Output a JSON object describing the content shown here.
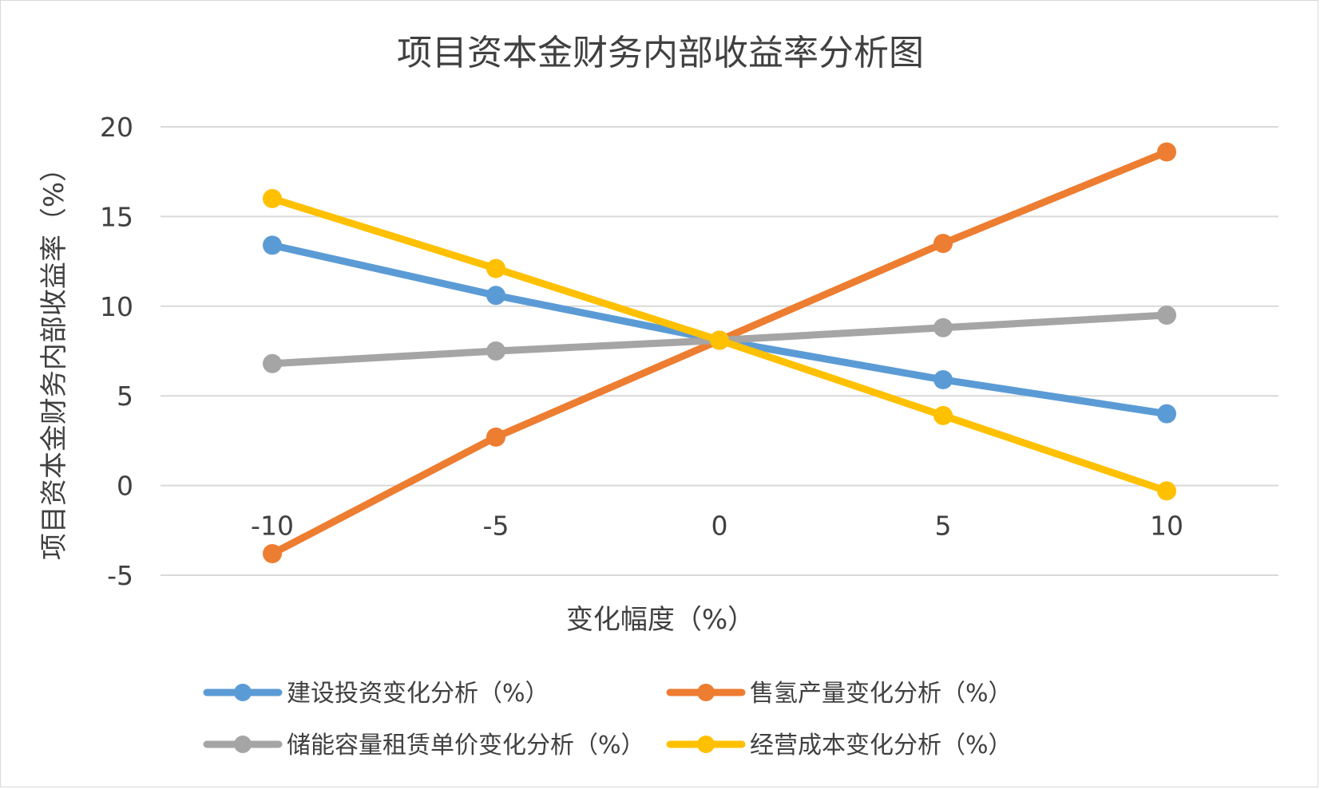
{
  "chart_data": {
    "type": "line",
    "title": "项目资本金财务内部收益率分析图",
    "xlabel": "变化幅度（%）",
    "ylabel": "项目资本金财务内部收益率（%）",
    "x": [
      -10,
      -5,
      0,
      5,
      10
    ],
    "ylim": [
      -5,
      20
    ],
    "yticks": [
      -5,
      0,
      5,
      10,
      15,
      20
    ],
    "grid": true,
    "legend_position": "bottom",
    "series": [
      {
        "name": "建设投资变化分析（%）",
        "color": "#5b9bd5",
        "values": [
          13.4,
          10.6,
          8.1,
          5.9,
          4.0
        ]
      },
      {
        "name": "售氢产量变化分析（%）",
        "color": "#ed7d31",
        "values": [
          -3.8,
          2.7,
          8.1,
          13.5,
          18.6
        ]
      },
      {
        "name": "储能容量租赁单价变化分析（%）",
        "color": "#a5a5a5",
        "values": [
          6.8,
          7.5,
          8.1,
          8.8,
          9.5
        ]
      },
      {
        "name": "经营成本变化分析（%）",
        "color": "#ffc000",
        "values": [
          16.0,
          12.1,
          8.1,
          3.9,
          -0.3
        ]
      }
    ]
  }
}
